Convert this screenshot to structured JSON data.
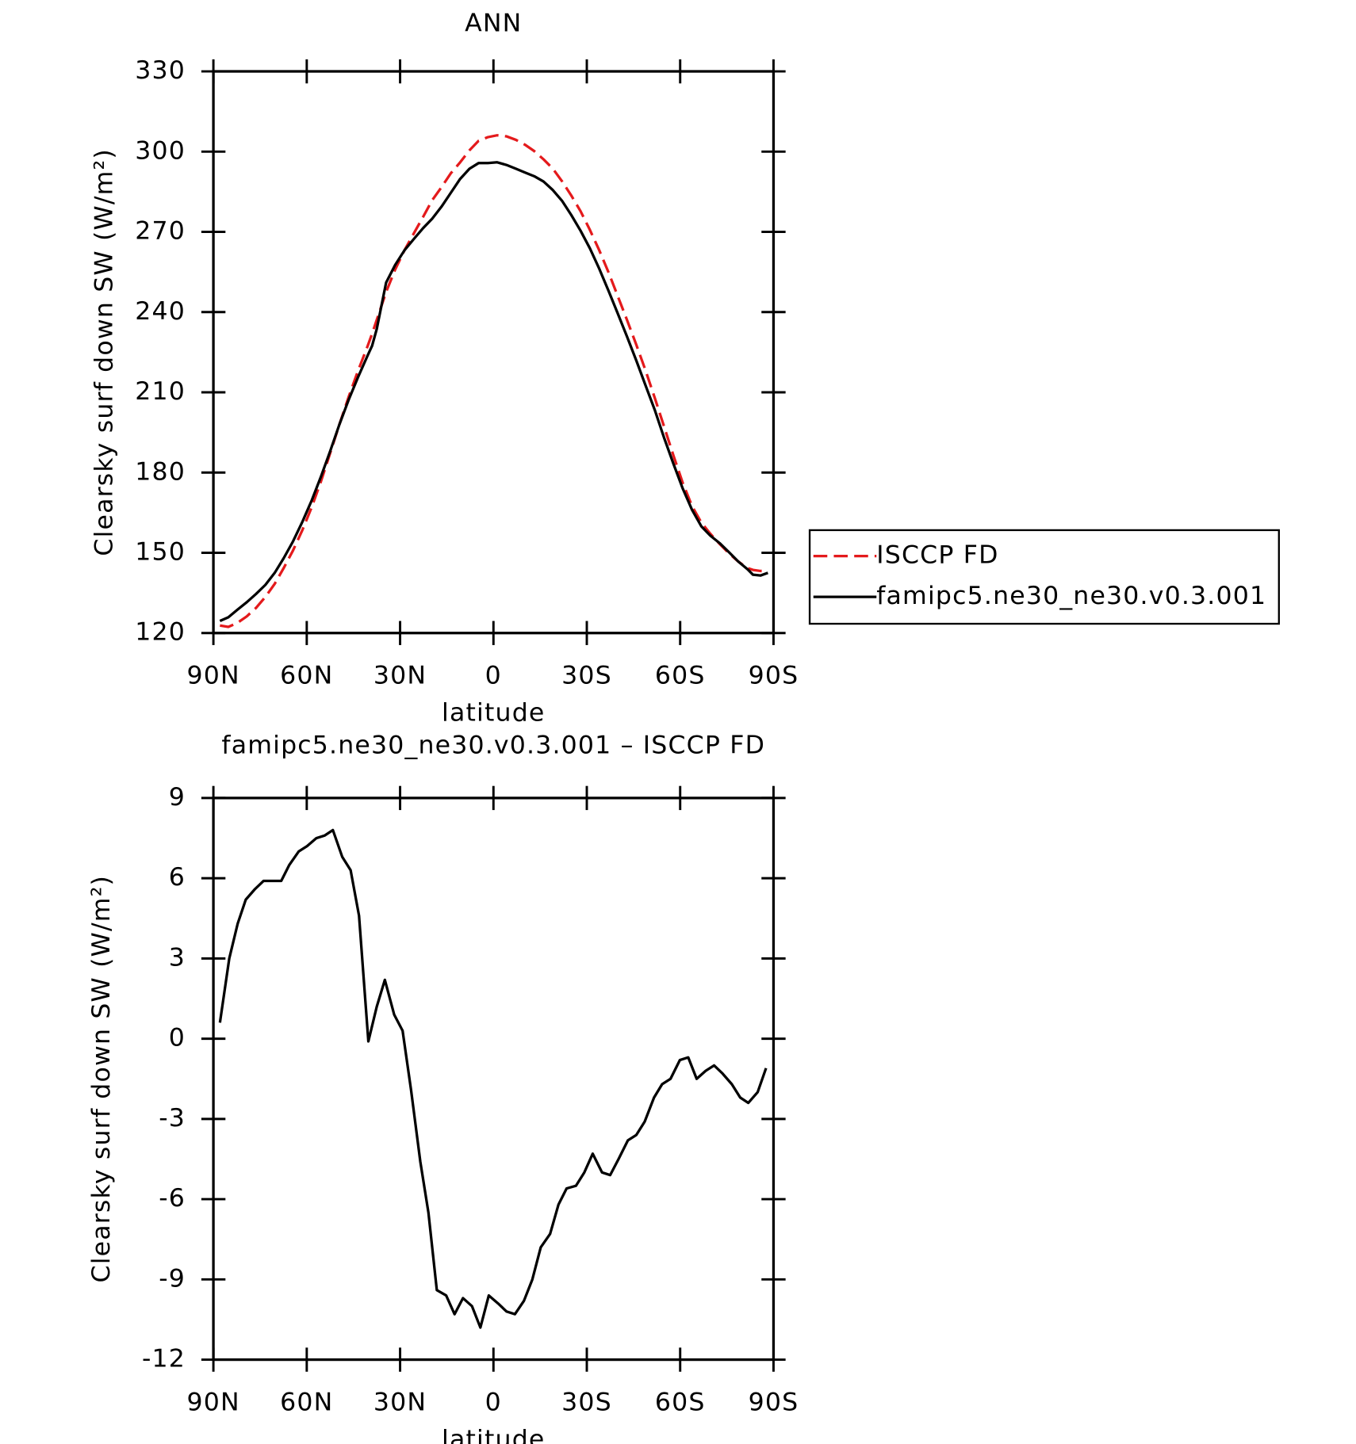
{
  "chart_data": [
    {
      "type": "line",
      "title": "ANN",
      "xlabel": "latitude",
      "ylabel": "Clearsky surf down SW (W/m²)",
      "x": [
        87.9,
        85.2,
        82.3,
        79.3,
        76.3,
        73.3,
        70.3,
        67.4,
        64.4,
        61.4,
        58.4,
        55.4,
        52.5,
        49.5,
        46.5,
        43.5,
        40.5,
        39.0,
        37.5,
        34.5,
        31.6,
        28.6,
        25.6,
        22.6,
        19.7,
        16.7,
        13.7,
        10.7,
        7.7,
        4.8,
        1.8,
        -1.2,
        -4.2,
        -7.2,
        -10.1,
        -13.1,
        -16.1,
        -19.1,
        -22.1,
        -25.0,
        -28.0,
        -31.0,
        -34.0,
        -37.0,
        -39.9,
        -42.9,
        -45.9,
        -48.9,
        -51.9,
        -54.8,
        -57.8,
        -60.8,
        -63.8,
        -66.8,
        -69.7,
        -72.7,
        -75.7,
        -78.7,
        -81.6,
        -83.4,
        -85.8,
        -88.2
      ],
      "series": [
        {
          "name": "ISCCP FD",
          "color": "#e41a1c",
          "dashed": true,
          "values": [
            122.8,
            122.3,
            123.8,
            126.2,
            129.4,
            133.5,
            138.4,
            144.3,
            150.9,
            158.5,
            167.1,
            176.8,
            187.2,
            198.0,
            208.4,
            218.1,
            227.1,
            231.9,
            237.1,
            247.5,
            255.9,
            263.1,
            269.4,
            275.6,
            281.8,
            286.7,
            291.9,
            296.0,
            300.5,
            304.0,
            305.4,
            306.1,
            305.7,
            304.4,
            302.6,
            300.2,
            297.1,
            293.6,
            288.8,
            283.6,
            277.7,
            270.7,
            263.1,
            254.8,
            246.1,
            237.1,
            227.8,
            218.1,
            207.7,
            197.3,
            186.5,
            176.2,
            167.5,
            161.3,
            157.1,
            153.3,
            149.8,
            146.7,
            144.3,
            143.6,
            143.2,
            143.2
          ]
        },
        {
          "name": "famipc5.ne30_ne30.v0.3.001",
          "color": "#000000",
          "dashed": false,
          "values": [
            124.5,
            125.9,
            128.7,
            131.5,
            134.6,
            138.0,
            142.5,
            148.0,
            154.3,
            161.6,
            169.6,
            178.6,
            187.9,
            198.0,
            207.3,
            215.7,
            223.6,
            227.4,
            233.7,
            251.0,
            257.6,
            263.1,
            267.3,
            271.4,
            274.9,
            279.4,
            284.6,
            289.8,
            293.6,
            295.7,
            295.7,
            296.0,
            295.0,
            293.6,
            292.2,
            290.8,
            288.8,
            285.6,
            281.5,
            276.3,
            270.4,
            263.8,
            256.2,
            247.9,
            239.6,
            230.9,
            221.9,
            212.5,
            203.2,
            193.1,
            183.4,
            174.1,
            166.1,
            159.9,
            156.4,
            153.6,
            150.2,
            146.7,
            143.9,
            141.8,
            141.5,
            142.5
          ]
        }
      ],
      "xlim": [
        90,
        -90
      ],
      "xticks": [
        {
          "value": 90,
          "label": "90N"
        },
        {
          "value": 60,
          "label": "60N"
        },
        {
          "value": 30,
          "label": "30N"
        },
        0,
        {
          "value": -30,
          "label": "30S"
        },
        {
          "value": -60,
          "label": "60S"
        },
        {
          "value": -90,
          "label": "90S"
        }
      ],
      "ylim": [
        120,
        330
      ],
      "yticks": [
        120,
        150,
        180,
        210,
        240,
        270,
        300,
        330
      ],
      "legend": "right"
    },
    {
      "type": "line",
      "title": "famipc5.ne30_ne30.v0.3.001 – ISCCP FD",
      "xlabel": "latitude",
      "ylabel": "Clearsky surf down SW (W/m²)",
      "x": [
        87.9,
        84.9,
        82.2,
        79.6,
        76.6,
        73.9,
        70.9,
        68.2,
        65.6,
        62.6,
        59.9,
        56.9,
        54.2,
        51.6,
        48.6,
        45.9,
        43.2,
        40.2,
        37.5,
        34.9,
        31.9,
        29.2,
        26.5,
        23.5,
        20.9,
        18.2,
        15.2,
        12.5,
        9.8,
        6.9,
        4.2,
        1.5,
        -1.5,
        -4.2,
        -6.9,
        -9.8,
        -12.5,
        -15.2,
        -18.2,
        -20.9,
        -23.5,
        -26.5,
        -29.2,
        -31.9,
        -34.9,
        -37.5,
        -40.2,
        -43.2,
        -45.9,
        -48.6,
        -51.6,
        -54.2,
        -56.9,
        -59.9,
        -62.6,
        -65.3,
        -68.2,
        -70.9,
        -73.6,
        -76.6,
        -79.3,
        -81.9,
        -84.9,
        -87.6
      ],
      "values": [
        0.6,
        3.0,
        4.3,
        5.2,
        5.6,
        5.9,
        5.9,
        5.9,
        6.5,
        7.0,
        7.2,
        7.5,
        7.6,
        7.8,
        6.8,
        6.3,
        4.6,
        -0.1,
        1.2,
        2.2,
        0.9,
        0.3,
        -1.9,
        -4.6,
        -6.5,
        -9.4,
        -9.6,
        -10.3,
        -9.7,
        -10.0,
        -10.8,
        -9.6,
        -9.9,
        -10.2,
        -10.3,
        -9.8,
        -9.0,
        -7.8,
        -7.3,
        -6.2,
        -5.6,
        -5.5,
        -5.0,
        -4.3,
        -5.0,
        -5.1,
        -4.5,
        -3.8,
        -3.6,
        -3.1,
        -2.2,
        -1.7,
        -1.5,
        -0.8,
        -0.7,
        -1.5,
        -1.2,
        -1.0,
        -1.3,
        -1.7,
        -2.2,
        -2.4,
        -2.0,
        -1.1
      ],
      "color": "#000000",
      "xlim": [
        90,
        -90
      ],
      "xticks": [
        {
          "value": 90,
          "label": "90N"
        },
        {
          "value": 60,
          "label": "60N"
        },
        {
          "value": 30,
          "label": "30N"
        },
        0,
        {
          "value": -30,
          "label": "30S"
        },
        {
          "value": -60,
          "label": "60S"
        },
        {
          "value": -90,
          "label": "90S"
        }
      ],
      "ylim": [
        -12,
        9
      ],
      "yticks": [
        -12,
        -9,
        -6,
        -3,
        0,
        3,
        6,
        9
      ]
    }
  ]
}
